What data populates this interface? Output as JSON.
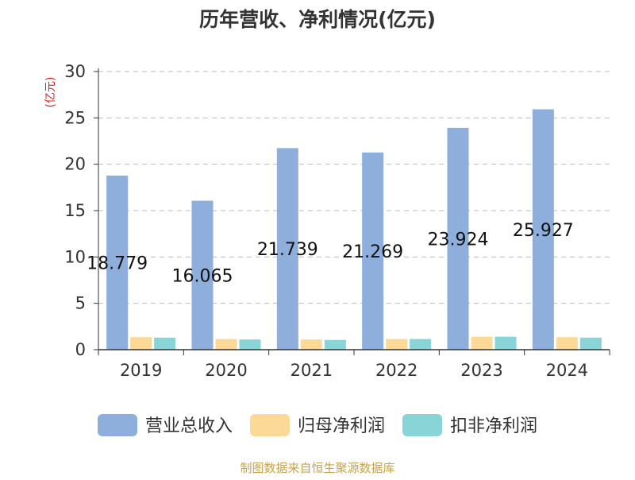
{
  "chart_data": {
    "type": "bar",
    "title": "历年营收、净利情况(亿元)",
    "ylabel": "(亿元)",
    "xlabel": "",
    "categories": [
      "2019",
      "2020",
      "2021",
      "2022",
      "2023",
      "2024"
    ],
    "ylim": [
      0,
      30
    ],
    "yticks": [
      0,
      5,
      10,
      15,
      20,
      25,
      30
    ],
    "grid": true,
    "legend_position": "bottom",
    "series": [
      {
        "name": "营业总收入",
        "color": "#8eaedb",
        "values": [
          18.779,
          16.065,
          21.739,
          21.269,
          23.924,
          25.927
        ],
        "data_labels": true
      },
      {
        "name": "归母净利润",
        "color": "#fdd998",
        "values": [
          1.35,
          1.15,
          1.1,
          1.15,
          1.4,
          1.35
        ],
        "data_labels": false
      },
      {
        "name": "扣非净利润",
        "color": "#88d4d6",
        "values": [
          1.3,
          1.1,
          1.05,
          1.15,
          1.4,
          1.3
        ],
        "data_labels": false
      }
    ],
    "source": "制图数据来自恒生聚源数据库",
    "colors": {
      "title": "#333333",
      "ylabel": "#e02020",
      "source": "#c7a24a",
      "axis": "#333333",
      "grid": "#bbbbbb"
    }
  }
}
